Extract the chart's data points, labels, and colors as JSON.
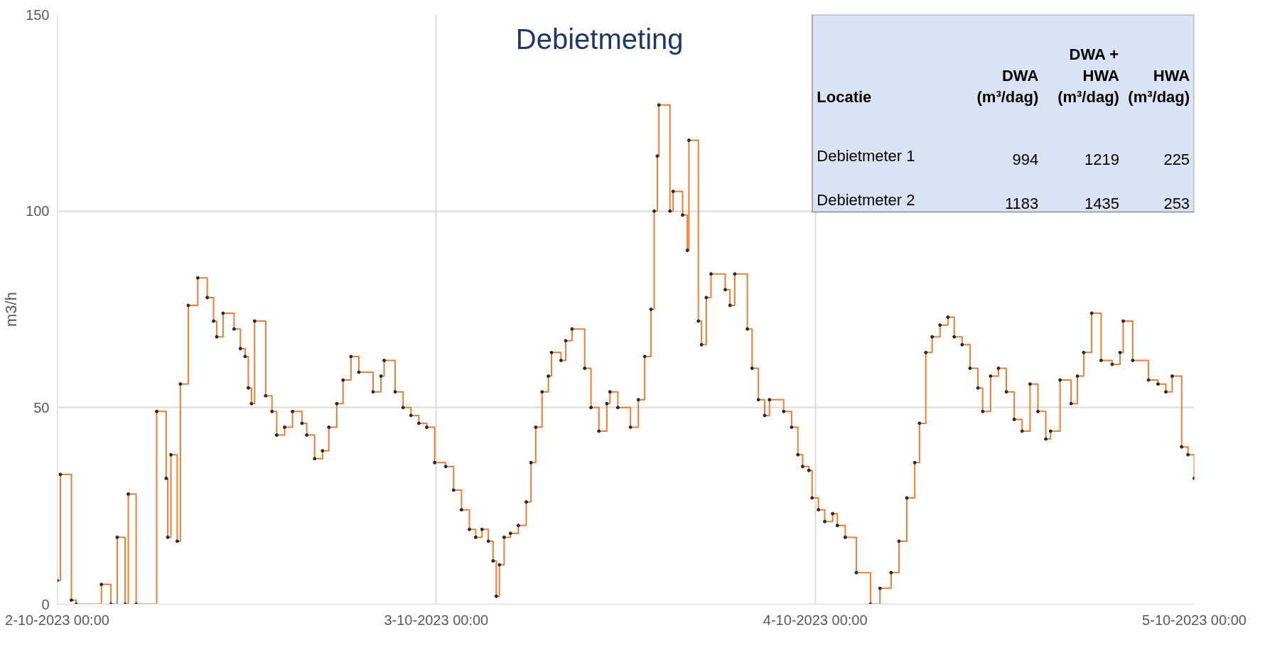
{
  "chart_data": {
    "type": "step",
    "title": "Debietmeting",
    "ylabel": "m3/h",
    "xlim": [
      "2023-10-02T00:00",
      "2023-10-05T00:00"
    ],
    "xticks": [
      {
        "value": "2023-10-02T00:00",
        "label": "2-10-2023 00:00"
      },
      {
        "value": "2023-10-03T00:00",
        "label": "3-10-2023 00:00"
      },
      {
        "value": "2023-10-04T00:00",
        "label": "4-10-2023 00:00"
      },
      {
        "value": "2023-10-05T00:00",
        "label": "5-10-2023 00:00"
      }
    ],
    "ylim": [
      0,
      150
    ],
    "yticks": [
      0,
      50,
      100,
      150
    ],
    "grid": true,
    "marker": "circle",
    "line_style": "solid",
    "annotations": [
      "Locatie",
      "DWA\n(m³/dag)",
      "DWA +\nHWA\n(m³/dag)",
      "HWA\n(m³/dag)",
      "Debietmeter 1",
      "994",
      "1219",
      "225",
      "Debietmeter 2",
      "1183",
      "1435",
      "253"
    ],
    "series": [
      {
        "color": "#ed7d31",
        "x": [
          "2023-10-02T00:00",
          "2023-10-02T00:12",
          "2023-10-02T00:54",
          "2023-10-02T01:12",
          "2023-10-02T02:48",
          "2023-10-02T03:24",
          "2023-10-02T03:48",
          "2023-10-02T04:18",
          "2023-10-02T04:30",
          "2023-10-02T05:00",
          "2023-10-02T06:18",
          "2023-10-02T06:54",
          "2023-10-02T07:00",
          "2023-10-02T07:12",
          "2023-10-02T07:36",
          "2023-10-02T07:48",
          "2023-10-02T08:18",
          "2023-10-02T08:54",
          "2023-10-02T09:30",
          "2023-10-02T09:54",
          "2023-10-02T10:06",
          "2023-10-02T10:30",
          "2023-10-02T11:12",
          "2023-10-02T11:36",
          "2023-10-02T11:54",
          "2023-10-02T12:06",
          "2023-10-02T12:18",
          "2023-10-02T12:30",
          "2023-10-02T13:12",
          "2023-10-02T13:36",
          "2023-10-02T13:54",
          "2023-10-02T14:24",
          "2023-10-02T14:54",
          "2023-10-02T15:30",
          "2023-10-02T15:48",
          "2023-10-02T16:18",
          "2023-10-02T16:48",
          "2023-10-02T17:12",
          "2023-10-02T17:42",
          "2023-10-02T18:06",
          "2023-10-02T18:36",
          "2023-10-02T19:06",
          "2023-10-02T20:00",
          "2023-10-02T20:30",
          "2023-10-02T20:42",
          "2023-10-02T21:24",
          "2023-10-02T21:54",
          "2023-10-02T22:24",
          "2023-10-02T22:54",
          "2023-10-02T23:24",
          "2023-10-02T23:54",
          "2023-10-03T00:36",
          "2023-10-03T01:06",
          "2023-10-03T01:36",
          "2023-10-03T02:06",
          "2023-10-03T02:30",
          "2023-10-03T02:54",
          "2023-10-03T03:18",
          "2023-10-03T03:36",
          "2023-10-03T03:48",
          "2023-10-03T04:00",
          "2023-10-03T04:18",
          "2023-10-03T04:42",
          "2023-10-03T05:12",
          "2023-10-03T05:42",
          "2023-10-03T06:00",
          "2023-10-03T06:18",
          "2023-10-03T06:42",
          "2023-10-03T07:06",
          "2023-10-03T07:18",
          "2023-10-03T07:54",
          "2023-10-03T08:12",
          "2023-10-03T08:36",
          "2023-10-03T09:24",
          "2023-10-03T09:48",
          "2023-10-03T10:18",
          "2023-10-03T10:48",
          "2023-10-03T11:00",
          "2023-10-03T11:30",
          "2023-10-03T12:18",
          "2023-10-03T12:48",
          "2023-10-03T13:12",
          "2023-10-03T13:36",
          "2023-10-03T13:48",
          "2023-10-03T14:00",
          "2023-10-03T14:06",
          "2023-10-03T14:48",
          "2023-10-03T15:00",
          "2023-10-03T15:36",
          "2023-10-03T15:54",
          "2023-10-03T16:00",
          "2023-10-03T16:36",
          "2023-10-03T16:48",
          "2023-10-03T17:06",
          "2023-10-03T17:24",
          "2023-10-03T18:18",
          "2023-10-03T18:36",
          "2023-10-03T18:54",
          "2023-10-03T19:42",
          "2023-10-03T20:00",
          "2023-10-03T20:24",
          "2023-10-03T20:48",
          "2023-10-03T21:06",
          "2023-10-03T22:00",
          "2023-10-03T22:30",
          "2023-10-03T22:54",
          "2023-10-03T23:12",
          "2023-10-03T23:36",
          "2023-10-03T23:48",
          "2023-10-04T00:12",
          "2023-10-04T00:36",
          "2023-10-04T01:06",
          "2023-10-04T01:24",
          "2023-10-04T01:54",
          "2023-10-04T02:36",
          "2023-10-04T03:30",
          "2023-10-04T04:06",
          "2023-10-04T04:48",
          "2023-10-04T05:18",
          "2023-10-04T05:48",
          "2023-10-04T06:18",
          "2023-10-04T06:36",
          "2023-10-04T07:00",
          "2023-10-04T07:24",
          "2023-10-04T07:54",
          "2023-10-04T08:24",
          "2023-10-04T08:48",
          "2023-10-04T09:18",
          "2023-10-04T09:48",
          "2023-10-04T10:18",
          "2023-10-04T10:36",
          "2023-10-04T11:06",
          "2023-10-04T11:36",
          "2023-10-04T12:06",
          "2023-10-04T12:36",
          "2023-10-04T13:06",
          "2023-10-04T13:36",
          "2023-10-04T14:06",
          "2023-10-04T14:36",
          "2023-10-04T14:54",
          "2023-10-04T15:30",
          "2023-10-04T16:12",
          "2023-10-04T16:36",
          "2023-10-04T17:00",
          "2023-10-04T17:30",
          "2023-10-04T18:06",
          "2023-10-04T18:48",
          "2023-10-04T19:18",
          "2023-10-04T19:30",
          "2023-10-04T20:06",
          "2023-10-04T21:06",
          "2023-10-04T21:42",
          "2023-10-04T22:12",
          "2023-10-04T22:36",
          "2023-10-04T23:12",
          "2023-10-04T23:36",
          "2023-10-05T00:00"
        ],
        "values": [
          6,
          33,
          1,
          0,
          5,
          0,
          17,
          0,
          28,
          0,
          49,
          32,
          17,
          38,
          16,
          56,
          76,
          83,
          78,
          72,
          68,
          74,
          70,
          65,
          63,
          55,
          51,
          72,
          53,
          49,
          43,
          45,
          49,
          46,
          43,
          37,
          39,
          45,
          51,
          57,
          63,
          59,
          54,
          58,
          62,
          54,
          50,
          48,
          46,
          45,
          36,
          35,
          29,
          24,
          19,
          17,
          19,
          16,
          11,
          2,
          10,
          17,
          18,
          20,
          26,
          36,
          45,
          54,
          58,
          64,
          62,
          67,
          70,
          60,
          50,
          44,
          51,
          54,
          50,
          45,
          52,
          63,
          75,
          100,
          114,
          127,
          100,
          105,
          99,
          90,
          118,
          72,
          66,
          78,
          84,
          80,
          76,
          84,
          70,
          60,
          52,
          48,
          52,
          49,
          45,
          38,
          35,
          34,
          27,
          24,
          21,
          23,
          20,
          17,
          8,
          0,
          4,
          8,
          16,
          27,
          36,
          46,
          64,
          68,
          71,
          73,
          68,
          66,
          60,
          55,
          49,
          58,
          60,
          54,
          47,
          44,
          56,
          49,
          42,
          44,
          57,
          51,
          58,
          64,
          74,
          62,
          61,
          64,
          72,
          62,
          57,
          56,
          54,
          58,
          40,
          38,
          32
        ]
      }
    ]
  }
}
